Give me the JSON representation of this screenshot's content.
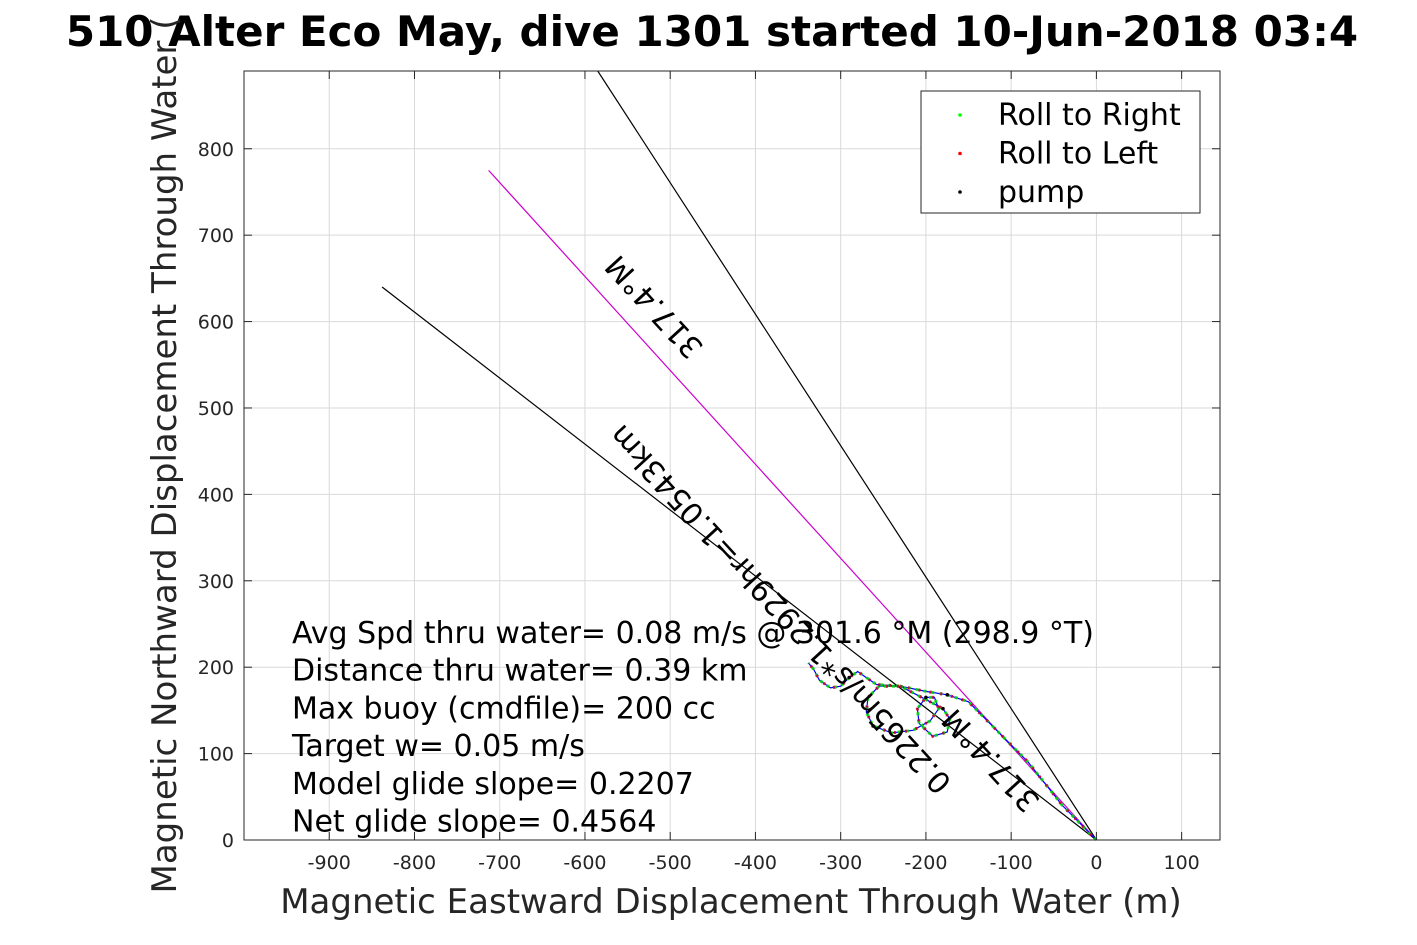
{
  "chart_data": {
    "type": "line",
    "title": "510 Alter Eco May, dive 1301 started 10-Jun-2018 03:4",
    "xlabel": "Magnetic Eastward Displacement Through Water (m)",
    "ylabel": "Magnetic Northward Displacement Through Water (",
    "xlim": [
      -1000,
      145
    ],
    "ylim": [
      0,
      890
    ],
    "xticks": [
      -900,
      -800,
      -700,
      -600,
      -500,
      -400,
      -300,
      -200,
      -100,
      0,
      100
    ],
    "yticks": [
      0,
      100,
      200,
      300,
      400,
      500,
      600,
      700,
      800
    ],
    "grid": true,
    "legend_position": "top-right",
    "legend": [
      {
        "name": "Roll to Right",
        "color": "#00ff00"
      },
      {
        "name": "Roll to Left",
        "color": "#ff0000"
      },
      {
        "name": "pump",
        "color": "#000000"
      }
    ],
    "reference_lines": [
      {
        "x": [
          0,
          -585
        ],
        "y": [
          0,
          890
        ],
        "color": "#000000"
      },
      {
        "x": [
          0,
          -713
        ],
        "y": [
          0,
          775
        ],
        "color": "#cc00cc"
      },
      {
        "x": [
          0,
          -838
        ],
        "y": [
          0,
          640
        ],
        "color": "#000000"
      }
    ],
    "line_labels": [
      {
        "text": "317.4°M",
        "x": -510,
        "y": 625,
        "rotation": 227.4
      },
      {
        "text": "0.2265m/s*1.2929hr=1.0543km",
        "x": -362,
        "y": 275,
        "rotation": 227.4
      },
      {
        "text": "317.4°M",
        "x": -115,
        "y": 100,
        "rotation": 227.4
      }
    ],
    "track_series": [
      {
        "name": "track",
        "color": "#0000ff",
        "points": [
          [
            0,
            0
          ],
          [
            -40,
            40
          ],
          [
            -80,
            90
          ],
          [
            -120,
            130
          ],
          [
            -150,
            160
          ],
          [
            -175,
            168
          ],
          [
            -200,
            172
          ],
          [
            -230,
            178
          ],
          [
            -255,
            178
          ],
          [
            -268,
            165
          ],
          [
            -270,
            148
          ],
          [
            -262,
            132
          ],
          [
            -240,
            124
          ],
          [
            -215,
            127
          ],
          [
            -195,
            138
          ],
          [
            -185,
            152
          ],
          [
            -190,
            165
          ],
          [
            -200,
            165
          ],
          [
            -210,
            152
          ],
          [
            -208,
            135
          ],
          [
            -192,
            120
          ],
          [
            -175,
            125
          ],
          [
            -172,
            140
          ],
          [
            -180,
            152
          ],
          [
            -195,
            160
          ],
          [
            -230,
            178
          ],
          [
            -258,
            180
          ],
          [
            -270,
            188
          ],
          [
            -280,
            195
          ],
          [
            -290,
            188
          ],
          [
            -300,
            178
          ],
          [
            -312,
            176
          ],
          [
            -325,
            185
          ],
          [
            -332,
            198
          ],
          [
            -338,
            205
          ]
        ]
      }
    ],
    "annotations": [
      "Avg Spd thru water=  0.08 m/s @ 301.6 °M (298.9 °T)",
      "Distance thru water=  0.39 km",
      "Max buoy (cmdfile)= 200 cc",
      "Target w= 0.05 m/s",
      "Model glide slope= 0.2207",
      "Net glide slope= 0.4564"
    ]
  }
}
